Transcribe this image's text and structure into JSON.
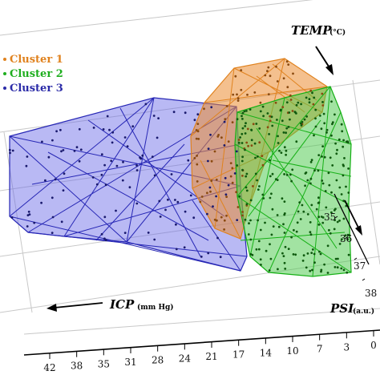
{
  "chart_data": {
    "type": "scatter",
    "title": "",
    "series": [
      {
        "name": "Cluster 1",
        "color": "#e0821e"
      },
      {
        "name": "Cluster 2",
        "color": "#1fae1f"
      },
      {
        "name": "Cluster 3",
        "color": "#2b2ba8"
      }
    ],
    "axes": {
      "icp": {
        "title": "ICP",
        "unit": "(mm Hg)",
        "ticks": [
          "42",
          "38",
          "35",
          "31",
          "28",
          "24",
          "21",
          "17",
          "14",
          "10",
          "7",
          "3",
          "0"
        ]
      },
      "psi": {
        "title": "PSI",
        "unit": "(a.u.)",
        "ticks": [
          "35",
          "36",
          "37",
          "38"
        ]
      },
      "temp": {
        "title": "TEMP",
        "unit": "(°C)"
      }
    },
    "legend_position": "top-left",
    "grid": true,
    "hull_style": "3d convex hulls with triangulated wireframe"
  }
}
